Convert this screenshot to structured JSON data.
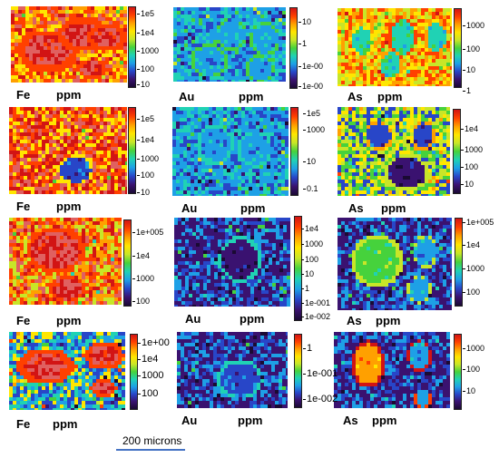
{
  "figure": {
    "rows": [
      [
        {
          "element": "Fe",
          "unit": "ppm",
          "ticks": [
            "1e5",
            "1e4",
            "1000",
            "100",
            "10"
          ]
        },
        {
          "element": "Au",
          "unit": "ppm",
          "ticks": [
            "10",
            "1",
            "1e-00",
            "1e-00"
          ]
        },
        {
          "element": "As",
          "unit": "ppm",
          "ticks": [
            "1000",
            "100",
            "10",
            "1"
          ]
        }
      ],
      [
        {
          "element": "Fe",
          "unit": "ppm",
          "ticks": [
            "1e5",
            "1e4",
            "1000",
            "100",
            "10"
          ]
        },
        {
          "element": "Au",
          "unit": "ppm",
          "ticks": [
            "1e5",
            "1000",
            "10",
            "0.1"
          ]
        },
        {
          "element": "As",
          "unit": "ppm",
          "ticks": [
            "1e4",
            "1000",
            "100",
            "10"
          ]
        }
      ],
      [
        {
          "element": "Fe",
          "unit": "ppm",
          "ticks": [
            "1e+005",
            "1e4",
            "1000",
            "100"
          ]
        },
        {
          "element": "Au",
          "unit": "ppm",
          "ticks": [
            "1e4",
            "1000",
            "100",
            "10",
            "1",
            "1e-001",
            "1e-002"
          ]
        },
        {
          "element": "As",
          "unit": "ppm",
          "ticks": [
            "1e+005",
            "1e4",
            "1000",
            "100"
          ]
        }
      ],
      [
        {
          "element": "Fe",
          "unit": "ppm",
          "ticks": [
            "1e+00",
            "1e4",
            "1000",
            "100"
          ]
        },
        {
          "element": "Au",
          "unit": "ppm",
          "ticks": [
            "1",
            "1e-001",
            "1e-002"
          ]
        },
        {
          "element": "As",
          "unit": "ppm",
          "ticks": [
            "1000",
            "100",
            "10"
          ]
        }
      ]
    ],
    "scale_bar_label": "200 microns",
    "colors": {
      "scale_bar": "#4472c4",
      "colormap": [
        "#1a0a33",
        "#3a1270",
        "#2846c8",
        "#1ea0e6",
        "#20d2b4",
        "#46d23c",
        "#c8e628",
        "#ffe600",
        "#ffa000",
        "#ff4000",
        "#d21414"
      ]
    }
  }
}
